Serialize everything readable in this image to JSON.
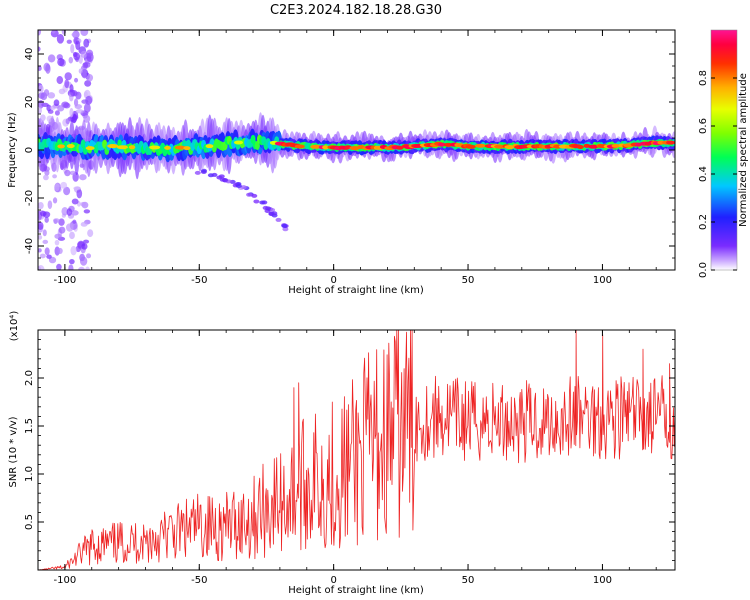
{
  "title": "C2E3.2024.182.18.28.G30",
  "chart_data": [
    {
      "type": "heatmap",
      "xlabel": "Height of straight line (km)",
      "ylabel": "Frequency (Hz)",
      "xlim": [
        -110,
        127
      ],
      "ylim": [
        -50,
        50
      ],
      "xticks": [
        -100,
        -50,
        0,
        50,
        100
      ],
      "yticks": [
        -40,
        -20,
        0,
        20,
        40
      ],
      "ridge": [
        {
          "x": -110,
          "f": 2.0
        },
        {
          "x": -100,
          "f": 1.5
        },
        {
          "x": -90,
          "f": 1.0
        },
        {
          "x": -80,
          "f": 1.5
        },
        {
          "x": -70,
          "f": 1.0
        },
        {
          "x": -60,
          "f": 0.5
        },
        {
          "x": -50,
          "f": 1.5
        },
        {
          "x": -40,
          "f": 2.5
        },
        {
          "x": -30,
          "f": 3.5
        },
        {
          "x": -20,
          "f": 2.5
        },
        {
          "x": -10,
          "f": 1.5
        },
        {
          "x": 0,
          "f": 1.0
        },
        {
          "x": 10,
          "f": 1.0
        },
        {
          "x": 20,
          "f": 1.0
        },
        {
          "x": 30,
          "f": 1.5
        },
        {
          "x": 40,
          "f": 2.5
        },
        {
          "x": 50,
          "f": 1.5
        },
        {
          "x": 60,
          "f": 1.5
        },
        {
          "x": 70,
          "f": 1.5
        },
        {
          "x": 80,
          "f": 1.5
        },
        {
          "x": 90,
          "f": 1.5
        },
        {
          "x": 100,
          "f": 1.5
        },
        {
          "x": 110,
          "f": 2.0
        },
        {
          "x": 120,
          "f": 3.0
        },
        {
          "x": 127,
          "f": 3.0
        }
      ],
      "colorbar": {
        "label": "Normalized spectral amplitude",
        "range": [
          0,
          1
        ],
        "ticks": [
          0.0,
          0.2,
          0.4,
          0.6,
          0.8
        ],
        "tick_labels": [
          "0.0",
          "0.2",
          "0.4",
          "0.6",
          "0.8"
        ],
        "colors": [
          "#ffffff",
          "#b27ff5",
          "#6a1fff",
          "#2020ff",
          "#00d0ff",
          "#00ff66",
          "#a0ff00",
          "#ffd000",
          "#ff6000",
          "#ff0044",
          "#ff1493"
        ]
      }
    },
    {
      "type": "line",
      "xlabel": "Height of straight line (km)",
      "ylabel": "SNR (10 * v/v)",
      "y_multiplier": "(x10⁴)",
      "xlim": [
        -110,
        127
      ],
      "ylim": [
        0,
        2.5
      ],
      "xticks": [
        -100,
        -50,
        0,
        50,
        100
      ],
      "yticks": [
        0.5,
        1.0,
        1.5,
        2.0
      ],
      "ytick_labels": [
        "0.5",
        "1.0",
        "1.5",
        "2.0"
      ],
      "color": "#ee2222",
      "envelope": [
        {
          "x": -110,
          "y": 0.0
        },
        {
          "x": -100,
          "y": 0.03
        },
        {
          "x": -95,
          "y": 0.15
        },
        {
          "x": -90,
          "y": 0.25
        },
        {
          "x": -80,
          "y": 0.28
        },
        {
          "x": -70,
          "y": 0.3
        },
        {
          "x": -60,
          "y": 0.38
        },
        {
          "x": -50,
          "y": 0.45
        },
        {
          "x": -40,
          "y": 0.45
        },
        {
          "x": -30,
          "y": 0.55
        },
        {
          "x": -25,
          "y": 0.65
        },
        {
          "x": -20,
          "y": 0.7
        },
        {
          "x": -15,
          "y": 0.8
        },
        {
          "x": -10,
          "y": 0.9
        },
        {
          "x": -5,
          "y": 0.95
        },
        {
          "x": 0,
          "y": 1.0
        },
        {
          "x": 5,
          "y": 1.05
        },
        {
          "x": 10,
          "y": 1.2
        },
        {
          "x": 20,
          "y": 1.4
        },
        {
          "x": 30,
          "y": 1.55
        },
        {
          "x": 40,
          "y": 1.6
        },
        {
          "x": 50,
          "y": 1.55
        },
        {
          "x": 60,
          "y": 1.55
        },
        {
          "x": 70,
          "y": 1.55
        },
        {
          "x": 80,
          "y": 1.55
        },
        {
          "x": 90,
          "y": 1.6
        },
        {
          "x": 100,
          "y": 1.6
        },
        {
          "x": 110,
          "y": 1.6
        },
        {
          "x": 120,
          "y": 1.6
        },
        {
          "x": 127,
          "y": 1.6
        }
      ],
      "peaks": [
        {
          "x": -15,
          "y": 1.9
        },
        {
          "x": -13,
          "y": 1.95
        },
        {
          "x": 90,
          "y": 2.5
        },
        {
          "x": 100,
          "y": 2.45
        },
        {
          "x": 115,
          "y": 2.3
        },
        {
          "x": 125,
          "y": 2.15
        }
      ]
    }
  ]
}
